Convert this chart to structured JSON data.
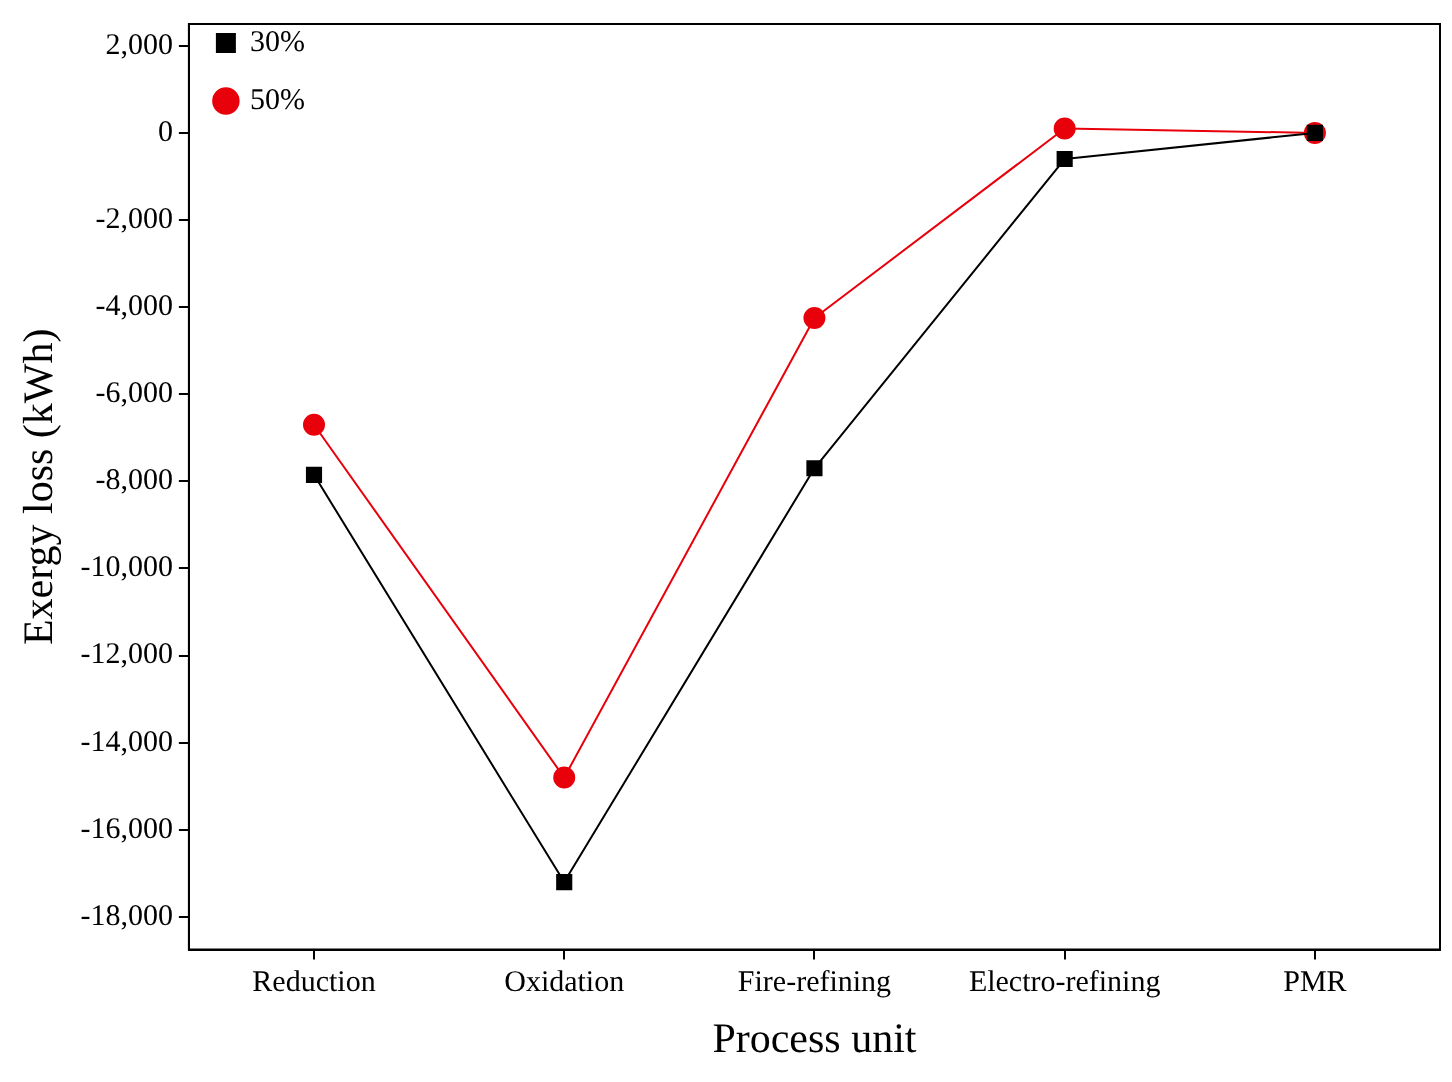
{
  "chart_data": {
    "type": "line",
    "xlabel": "Process unit",
    "ylabel": "Exergy loss (kWh)",
    "categories": [
      "Reduction",
      "Oxidation",
      "Fire-refining",
      "Electro-refining",
      "PMR"
    ],
    "series": [
      {
        "name": "30%",
        "color": "#000000",
        "marker": "square",
        "values": [
          -7850,
          -17200,
          -7700,
          -600,
          0
        ]
      },
      {
        "name": "50%",
        "color": "#e8000b",
        "marker": "circle",
        "values": [
          -6700,
          -14800,
          -4250,
          100,
          0
        ]
      }
    ],
    "ylim": [
      -18750,
      2500
    ],
    "yticks": [
      {
        "value": -18000,
        "label": "-18,000"
      },
      {
        "value": -16000,
        "label": "-16,000"
      },
      {
        "value": -14000,
        "label": "-14,000"
      },
      {
        "value": -12000,
        "label": "-12,000"
      },
      {
        "value": -10000,
        "label": "-10,000"
      },
      {
        "value": -8000,
        "label": "-8,000"
      },
      {
        "value": -6000,
        "label": "-6,000"
      },
      {
        "value": -4000,
        "label": "-4,000"
      },
      {
        "value": -2000,
        "label": "-2,000"
      },
      0,
      {
        "value": 2000,
        "label": "2,000"
      }
    ],
    "grid": false,
    "legend": "top left",
    "line_style": "solid"
  }
}
